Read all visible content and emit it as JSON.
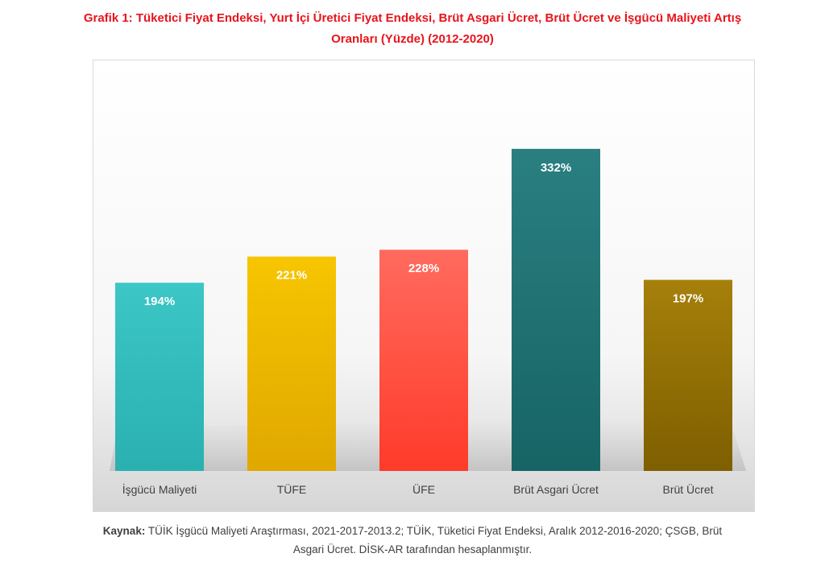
{
  "title": {
    "line1": "Grafik 1: Tüketici Fiyat Endeksi, Yurt İçi Üretici Fiyat Endeksi, Brüt Asgari Ücret, Brüt Ücret ve İşgücü Maliyeti Artış",
    "line2": "Oranları (Yüzde) (2012-2020)"
  },
  "source": {
    "label": "Kaynak:",
    "line1": "TÜİK İşgücü Maliyeti Araştırması, 2021-2017-2013.2; TÜİK, Tüketici Fiyat Endeksi, Aralık 2012-2016-2020; ÇSGB, Brüt",
    "line2": "Asgari Ücret. DİSK-AR tarafından hesaplanmıştır."
  },
  "chart_data": {
    "type": "bar",
    "title": "Grafik 1: Tüketici Fiyat Endeksi, Yurt İçi Üretici Fiyat Endeksi, Brüt Asgari Ücret, Brüt Ücret ve İşgücü Maliyeti Artış Oranları (Yüzde) (2012-2020)",
    "categories": [
      "İşgücü Maliyeti",
      "TÜFE",
      "ÜFE",
      "Brüt Asgari Ücret",
      "Brüt Ücret"
    ],
    "values": [
      194,
      221,
      228,
      332,
      197
    ],
    "labels": [
      "194%",
      "221%",
      "228%",
      "332%",
      "197%"
    ],
    "colors": [
      [
        "#3cc6c6",
        "#2ab0b0"
      ],
      [
        "#f7c500",
        "#e0a800"
      ],
      [
        "#ff6b5e",
        "#ff3b2a"
      ],
      [
        "#2a7f80",
        "#176465"
      ],
      [
        "#a6800a",
        "#7e5f00"
      ]
    ],
    "ylim": [
      0,
      390
    ],
    "xlabel": "",
    "ylabel": "",
    "grid": false
  }
}
